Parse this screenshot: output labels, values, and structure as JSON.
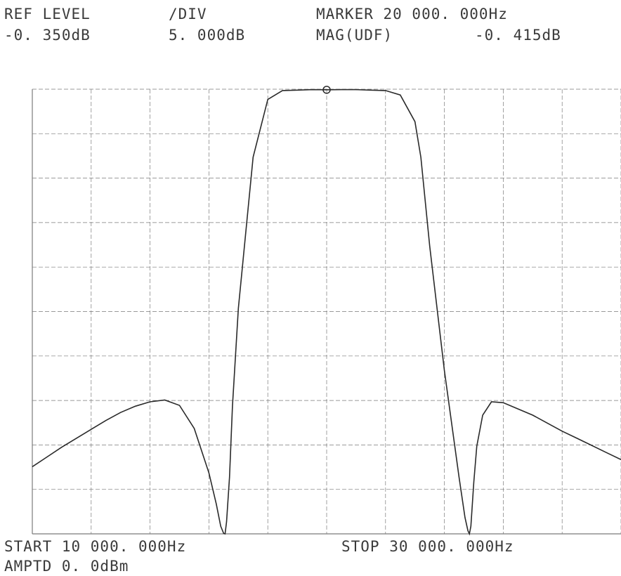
{
  "header": {
    "ref_level_label": "REF LEVEL",
    "ref_level_value": "-0. 350dB",
    "div_label": "/DIV",
    "div_value": "5. 000dB",
    "marker_label": "MARKER 20 000. 000Hz",
    "mag_label": "MAG(UDF)",
    "mag_value": "-0. 415dB"
  },
  "footer": {
    "start_label": "START 10 000. 000Hz",
    "stop_label": "STOP 30 000. 000Hz",
    "amptd_label": "AMPTD 0. 0dBm"
  },
  "colors": {
    "trace": "#2a2a2a",
    "grid": "#7a7a7a",
    "text": "#3a3a3a"
  },
  "chart_data": {
    "type": "line",
    "title": "",
    "xlabel": "",
    "ylabel": "",
    "xlim": [
      10000,
      30000
    ],
    "ylim": [
      -50.35,
      -0.35
    ],
    "grid": true,
    "x_divisions": 10,
    "y_divisions": 10,
    "marker": {
      "x": 20000,
      "y": -0.415
    },
    "series": [
      {
        "x": [
          10000,
          10500,
          11000,
          11500,
          12000,
          12500,
          13000,
          13500,
          14000,
          14500,
          15000,
          15500,
          16000,
          16250,
          16400,
          16500,
          16550,
          16600,
          16700,
          16800,
          17000,
          17500,
          18000,
          18500,
          19000,
          19500,
          20000,
          20500,
          21000,
          21500,
          22000,
          22500,
          23000,
          23200,
          23500,
          24000,
          24500,
          24700,
          24800,
          24850,
          24900,
          25000,
          25100,
          25300,
          25600,
          26000,
          26500,
          27000,
          27500,
          28000,
          28500,
          29000,
          29500,
          30000
        ],
        "y": [
          -42.8,
          -41.7,
          -40.6,
          -39.6,
          -38.6,
          -37.6,
          -36.7,
          -36.0,
          -35.5,
          -35.3,
          -35.9,
          -38.5,
          -43.5,
          -47.0,
          -49.5,
          -50.3,
          -50.35,
          -49.0,
          -44.0,
          -36.0,
          -25.0,
          -8.0,
          -1.5,
          -0.5,
          -0.45,
          -0.4,
          -0.415,
          -0.4,
          -0.4,
          -0.45,
          -0.5,
          -1.0,
          -4.0,
          -8.0,
          -18.0,
          -32.0,
          -44.0,
          -48.5,
          -50.0,
          -50.35,
          -49.5,
          -44.5,
          -40.5,
          -37.0,
          -35.5,
          -35.6,
          -36.3,
          -37.0,
          -37.9,
          -38.8,
          -39.6,
          -40.4,
          -41.2,
          -42.0
        ]
      }
    ]
  }
}
